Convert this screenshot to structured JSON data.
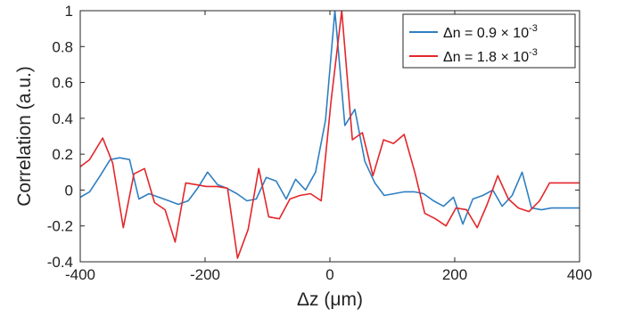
{
  "chart_data": {
    "type": "line",
    "title": "",
    "xlabel": "Δz (μm)",
    "ylabel": "Correlation (a.u.)",
    "xlim": [
      -400,
      400
    ],
    "ylim": [
      -0.4,
      1
    ],
    "xticks": [
      -400,
      -200,
      0,
      200,
      400
    ],
    "xtick_labels": [
      "-400",
      "-200",
      "0",
      "200",
      "400"
    ],
    "yticks": [
      -0.4,
      -0.2,
      0,
      0.2,
      0.4,
      0.6,
      0.8,
      1
    ],
    "ytick_labels": [
      "-0.4",
      "-0.2",
      "0",
      "0.2",
      "0.4",
      "0.6",
      "0.8",
      "1"
    ],
    "grid": false,
    "legend_position": "top-right",
    "series": [
      {
        "name": "Δn = 0.9 × 10-3",
        "legend_base": "Δn = 0.9 × 10",
        "legend_exp": "-3",
        "color": "#2f7fc1",
        "x": [
          -400,
          -385,
          -368,
          -352,
          -337,
          -321,
          -306,
          -290,
          -274,
          -258,
          -243,
          -227,
          -212,
          -196,
          -180,
          -165,
          -149,
          -133,
          -118,
          -102,
          -86,
          -70,
          -55,
          -39,
          -23,
          -7,
          8,
          24,
          40,
          56,
          72,
          87,
          103,
          119,
          135,
          150,
          166,
          182,
          198,
          213,
          229,
          245,
          261,
          276,
          292,
          308,
          323,
          339,
          355,
          371,
          386,
          400
        ],
        "y": [
          -0.04,
          -0.01,
          0.08,
          0.17,
          0.18,
          0.17,
          -0.05,
          -0.02,
          -0.04,
          -0.06,
          -0.08,
          -0.06,
          0.01,
          0.1,
          0.03,
          0.01,
          -0.02,
          -0.06,
          -0.05,
          0.07,
          0.05,
          -0.05,
          0.06,
          0.0,
          0.1,
          0.39,
          1.0,
          0.36,
          0.45,
          0.16,
          0.04,
          -0.03,
          -0.02,
          -0.01,
          -0.01,
          -0.02,
          -0.06,
          -0.09,
          -0.04,
          -0.19,
          -0.05,
          -0.03,
          0.0,
          -0.09,
          -0.03,
          0.1,
          -0.1,
          -0.11,
          -0.1,
          -0.1,
          -0.1,
          -0.1
        ]
      },
      {
        "name": "Δn = 1.8 × 10-3",
        "legend_base": "Δn = 1.8 × 10",
        "legend_exp": "-3",
        "color": "#e3262b",
        "x": [
          -400,
          -385,
          -364,
          -348,
          -331,
          -314,
          -297,
          -281,
          -264,
          -248,
          -231,
          -214,
          -198,
          -181,
          -164,
          -148,
          -131,
          -114,
          -98,
          -81,
          -64,
          -48,
          -31,
          -14,
          2,
          19,
          36,
          52,
          69,
          86,
          102,
          119,
          136,
          152,
          169,
          186,
          202,
          219,
          236,
          252,
          269,
          286,
          302,
          319,
          336,
          352,
          369,
          386,
          400
        ],
        "y": [
          0.13,
          0.17,
          0.29,
          0.15,
          -0.21,
          0.09,
          0.12,
          -0.07,
          -0.11,
          -0.29,
          0.04,
          0.03,
          0.02,
          0.02,
          0.01,
          -0.38,
          -0.22,
          0.12,
          -0.15,
          -0.16,
          -0.05,
          -0.03,
          -0.02,
          -0.06,
          0.5,
          1.0,
          0.28,
          0.32,
          0.08,
          0.28,
          0.26,
          0.31,
          0.1,
          -0.13,
          -0.16,
          -0.2,
          -0.1,
          -0.11,
          -0.21,
          -0.08,
          0.08,
          -0.05,
          -0.1,
          -0.12,
          -0.06,
          0.04,
          0.04,
          0.04,
          0.04
        ]
      }
    ]
  }
}
